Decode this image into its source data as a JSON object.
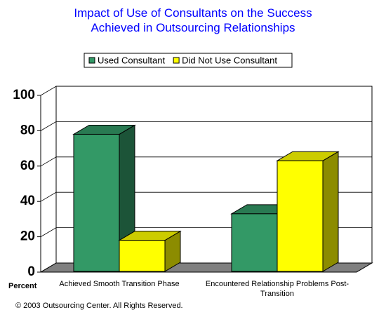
{
  "chart_data": {
    "type": "bar3d",
    "title": "Impact of Use of Consultants on the Success Achieved in Outsourcing Relationships",
    "y_label": "Percent",
    "categories": [
      "Achieved Smooth Transition Phase",
      "Encountered Relationship Problems Post-Transition"
    ],
    "series": [
      {
        "name": "Used Consultant",
        "color": "#339966",
        "values": [
          78,
          33
        ]
      },
      {
        "name": "Did Not Use Consultant",
        "color": "#ffff00",
        "values": [
          18,
          63
        ]
      }
    ],
    "ylim": [
      0,
      100
    ],
    "yticks": [
      0,
      20,
      40,
      60,
      80,
      100
    ],
    "grid": true,
    "legend": "top",
    "footer": "© 2003 Outsourcing Center. All Rights Reserved."
  }
}
